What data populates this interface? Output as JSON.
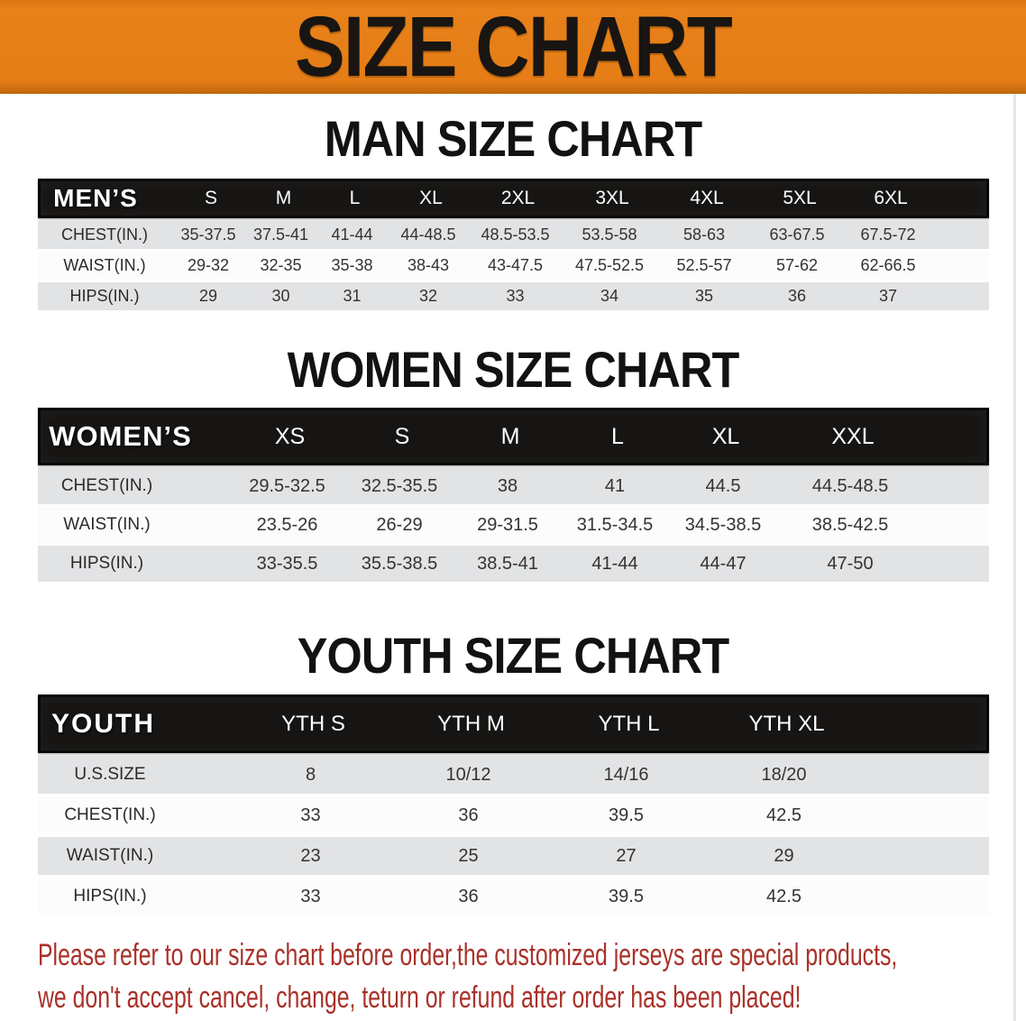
{
  "banner": {
    "title": "SIZE CHART"
  },
  "colors": {
    "banner_orange": "#e67d16",
    "table_header_black": "#171513",
    "row_gray": "#e2e3e5",
    "row_white": "#fcfcfc",
    "disclaimer_red": "#a93129"
  },
  "men": {
    "heading": "MAN SIZE CHART",
    "corner": "MEN’S",
    "sizes": [
      "S",
      "M",
      "L",
      "XL",
      "2XL",
      "3XL",
      "4XL",
      "5XL",
      "6XL"
    ],
    "rows": [
      {
        "label": "CHEST(IN.)",
        "values": [
          "35-37.5",
          "37.5-41",
          "41-44",
          "44-48.5",
          "48.5-53.5",
          "53.5-58",
          "58-63",
          "63-67.5",
          "67.5-72"
        ]
      },
      {
        "label": "WAIST(IN.)",
        "values": [
          "29-32",
          "32-35",
          "35-38",
          "38-43",
          "43-47.5",
          "47.5-52.5",
          "52.5-57",
          "57-62",
          "62-66.5"
        ]
      },
      {
        "label": "HIPS(IN.)",
        "values": [
          "29",
          "30",
          "31",
          "32",
          "33",
          "34",
          "35",
          "36",
          "37"
        ]
      }
    ]
  },
  "women": {
    "heading": "WOMEN SIZE CHART",
    "corner": "WOMEN’S",
    "sizes": [
      "XS",
      "S",
      "M",
      "L",
      "XL",
      "XXL"
    ],
    "rows": [
      {
        "label": "CHEST(IN.)",
        "values": [
          "29.5-32.5",
          "32.5-35.5",
          "38",
          "41",
          "44.5",
          "44.5-48.5"
        ]
      },
      {
        "label": "WAIST(IN.)",
        "values": [
          "23.5-26",
          "26-29",
          "29-31.5",
          "31.5-34.5",
          "34.5-38.5",
          "38.5-42.5"
        ]
      },
      {
        "label": "HIPS(IN.)",
        "values": [
          "33-35.5",
          "35.5-38.5",
          "38.5-41",
          "41-44",
          "44-47",
          "47-50"
        ]
      }
    ]
  },
  "youth": {
    "heading": "YOUTH SIZE CHART",
    "corner": "YOUTH",
    "sizes": [
      "YTH S",
      "YTH M",
      "YTH L",
      "YTH XL"
    ],
    "rows": [
      {
        "label": "U.S.SIZE",
        "values": [
          "8",
          "10/12",
          "14/16",
          "18/20"
        ]
      },
      {
        "label": "CHEST(IN.)",
        "values": [
          "33",
          "36",
          "39.5",
          "42.5"
        ]
      },
      {
        "label": "WAIST(IN.)",
        "values": [
          "23",
          "25",
          "27",
          "29"
        ]
      },
      {
        "label": "HIPS(IN.)",
        "values": [
          "33",
          "36",
          "39.5",
          "42.5"
        ]
      }
    ]
  },
  "disclaimer": {
    "line1": "Please refer to our size chart before order,the customized jerseys are special products,",
    "line2": "we don't accept cancel, change, teturn or refund after order has been placed!"
  }
}
